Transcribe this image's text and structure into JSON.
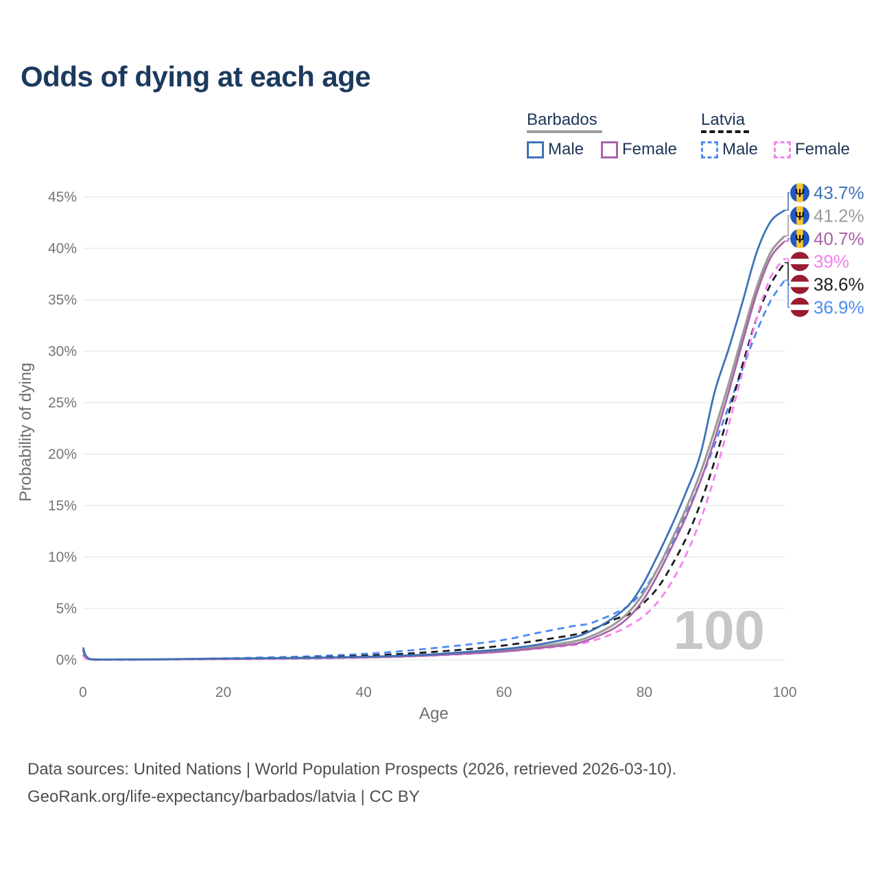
{
  "title": "Odds of dying at each age",
  "legend": {
    "barbados": {
      "label": "Barbados",
      "male_label": "Male",
      "female_label": "Female"
    },
    "latvia": {
      "label": "Latvia",
      "male_label": "Male",
      "female_label": "Female"
    }
  },
  "watermark": "100",
  "footer": {
    "line1": "Data sources: United Nations | World Population Prospects (2026, retrieved 2026-03-10).",
    "line2": "GeoRank.org/life-expectancy/barbados/latvia | CC BY"
  },
  "colors": {
    "title_text": "#1c3a5e",
    "legend_text": "#1d3557",
    "tick_text": "#757575",
    "axis_title_text": "#6e6e6e",
    "gridline": "#ececec",
    "watermark": "#c7c7c7",
    "footer_text": "#4f4f4f",
    "barbados_underline": "#9e9e9e",
    "latvia_underline": "#161616",
    "flag_barbados_blue": "#2257c5",
    "flag_barbados_gold": "#ffc726",
    "flag_trident": "#111111",
    "flag_latvia_red": "#9a1b32",
    "flag_latvia_white": "#ffffff"
  },
  "chart_data": {
    "type": "line",
    "title": "Odds of dying at each age",
    "xlabel": "Age",
    "ylabel": "Probability of dying",
    "xlim": [
      0,
      100
    ],
    "ylim": [
      0,
      45
    ],
    "x_ticks": [
      0,
      20,
      40,
      60,
      80,
      100
    ],
    "y_tick_values": [
      0,
      5,
      10,
      15,
      20,
      25,
      30,
      35,
      40,
      45
    ],
    "y_tick_labels": [
      "0%",
      "5%",
      "10%",
      "15%",
      "20%",
      "25%",
      "30%",
      "35%",
      "40%",
      "45%"
    ],
    "grid": "horizontal",
    "legend_position": "top-right",
    "unit": "%",
    "ages": [
      0,
      1,
      5,
      10,
      15,
      20,
      25,
      30,
      35,
      40,
      45,
      50,
      55,
      60,
      65,
      70,
      72,
      74,
      76,
      78,
      80,
      82,
      84,
      86,
      88,
      90,
      92,
      94,
      96,
      98,
      100
    ],
    "series": [
      {
        "id": "barbados-male",
        "name": "Barbados Male",
        "country": "Barbados",
        "sex": "Male",
        "color": "#3e72b7",
        "dashed": false,
        "flag": "barbados",
        "end_label": "43.7%",
        "end_value": 43.7,
        "values": [
          1.2,
          0.08,
          0.04,
          0.05,
          0.09,
          0.13,
          0.16,
          0.19,
          0.24,
          0.3,
          0.4,
          0.55,
          0.78,
          1.05,
          1.5,
          2.2,
          2.7,
          3.4,
          4.3,
          5.5,
          7.6,
          10.3,
          13.2,
          16.4,
          20.0,
          26.0,
          30.2,
          34.8,
          39.6,
          42.6,
          43.7
        ]
      },
      {
        "id": "barbados",
        "name": "Barbados (both sexes)",
        "country": "Barbados",
        "sex": "Both",
        "color": "#9b9b9b",
        "dashed": false,
        "flag": "barbados",
        "end_label": "41.2%",
        "end_value": 41.2,
        "values": [
          1.0,
          0.07,
          0.035,
          0.045,
          0.08,
          0.11,
          0.14,
          0.17,
          0.21,
          0.27,
          0.36,
          0.5,
          0.7,
          0.92,
          1.3,
          1.8,
          2.2,
          2.8,
          3.6,
          4.8,
          6.6,
          9.0,
          11.8,
          14.8,
          18.2,
          22.3,
          26.8,
          31.6,
          36.2,
          39.6,
          41.2
        ]
      },
      {
        "id": "barbados-female",
        "name": "Barbados Female",
        "country": "Barbados",
        "sex": "Female",
        "color": "#a963a8",
        "dashed": false,
        "flag": "barbados",
        "end_label": "40.7%",
        "end_value": 40.7,
        "values": [
          0.9,
          0.06,
          0.03,
          0.04,
          0.07,
          0.09,
          0.12,
          0.15,
          0.19,
          0.24,
          0.32,
          0.45,
          0.62,
          0.82,
          1.15,
          1.55,
          1.95,
          2.5,
          3.2,
          4.3,
          6.0,
          8.4,
          11.1,
          14.0,
          17.4,
          21.4,
          26.0,
          30.9,
          35.6,
          39.1,
          40.7
        ]
      },
      {
        "id": "latvia-female",
        "name": "Latvia Female",
        "country": "Latvia",
        "sex": "Female",
        "color": "#f580ef",
        "dashed": true,
        "flag": "latvia",
        "end_label": "39%",
        "end_value": 39.0,
        "values": [
          0.4,
          0.03,
          0.015,
          0.02,
          0.04,
          0.06,
          0.08,
          0.11,
          0.15,
          0.21,
          0.3,
          0.42,
          0.58,
          0.8,
          1.1,
          1.45,
          1.75,
          2.15,
          2.7,
          3.4,
          4.3,
          5.7,
          7.7,
          10.3,
          13.6,
          17.8,
          22.8,
          28.0,
          33.2,
          37.2,
          39.0
        ]
      },
      {
        "id": "latvia",
        "name": "Latvia (both sexes)",
        "country": "Latvia",
        "sex": "Both",
        "color": "#1c1c1c",
        "dashed": true,
        "flag": "latvia",
        "end_label": "38.6%",
        "end_value": 38.6,
        "values": [
          0.45,
          0.035,
          0.02,
          0.025,
          0.06,
          0.11,
          0.16,
          0.21,
          0.29,
          0.41,
          0.57,
          0.78,
          1.05,
          1.4,
          1.9,
          2.45,
          2.85,
          3.35,
          4.0,
          4.5,
          5.6,
          7.1,
          9.3,
          11.9,
          15.2,
          19.3,
          23.9,
          28.7,
          33.2,
          36.5,
          38.6
        ]
      },
      {
        "id": "latvia-male",
        "name": "Latvia Male",
        "country": "Latvia",
        "sex": "Male",
        "color": "#4d8bf2",
        "dashed": true,
        "flag": "latvia",
        "end_label": "36.9%",
        "end_value": 36.9,
        "values": [
          0.5,
          0.04,
          0.02,
          0.03,
          0.08,
          0.15,
          0.22,
          0.3,
          0.42,
          0.58,
          0.82,
          1.15,
          1.5,
          1.95,
          2.65,
          3.3,
          3.5,
          4.0,
          4.6,
          5.4,
          6.9,
          9.0,
          11.5,
          14.3,
          17.4,
          20.9,
          24.6,
          28.3,
          31.9,
          34.9,
          36.9
        ]
      }
    ]
  }
}
